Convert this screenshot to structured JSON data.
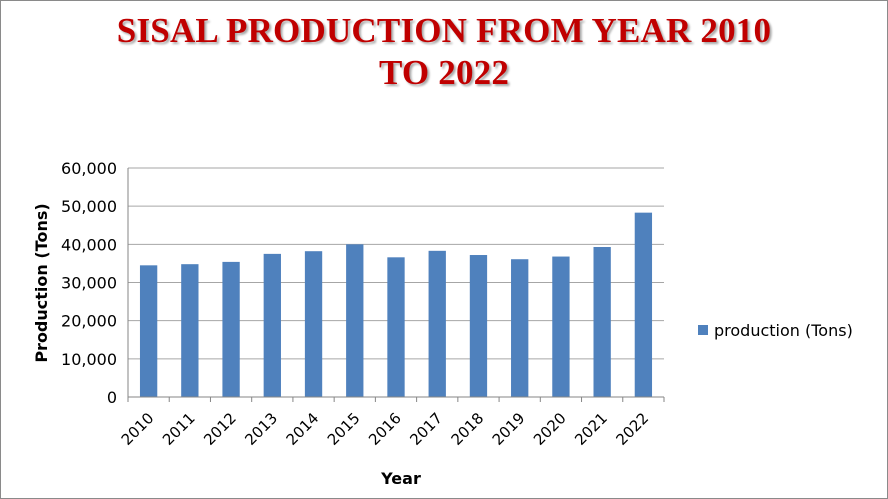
{
  "chart_data": {
    "type": "bar",
    "title_line1": "SISAL PRODUCTION FROM YEAR 2010",
    "title_line2": "TO 2022",
    "xlabel": "Year",
    "ylabel": "Production (Tons)",
    "ylim": [
      0,
      60000
    ],
    "yticks": [
      0,
      10000,
      20000,
      30000,
      40000,
      50000,
      60000
    ],
    "ytick_labels": [
      "0",
      "10,000",
      "20,000",
      "30,000",
      "40,000",
      "50,000",
      "60,000"
    ],
    "grid": true,
    "legend_position": "right",
    "categories": [
      "2010",
      "2011",
      "2012",
      "2013",
      "2014",
      "2015",
      "2016",
      "2017",
      "2018",
      "2019",
      "2020",
      "2021",
      "2022"
    ],
    "series": [
      {
        "name": "production (Tons)",
        "color": "#4f81bd",
        "values": [
          34500,
          34800,
          35400,
          37500,
          38200,
          40000,
          36600,
          38300,
          37200,
          36100,
          36800,
          39300,
          48300
        ]
      }
    ]
  }
}
